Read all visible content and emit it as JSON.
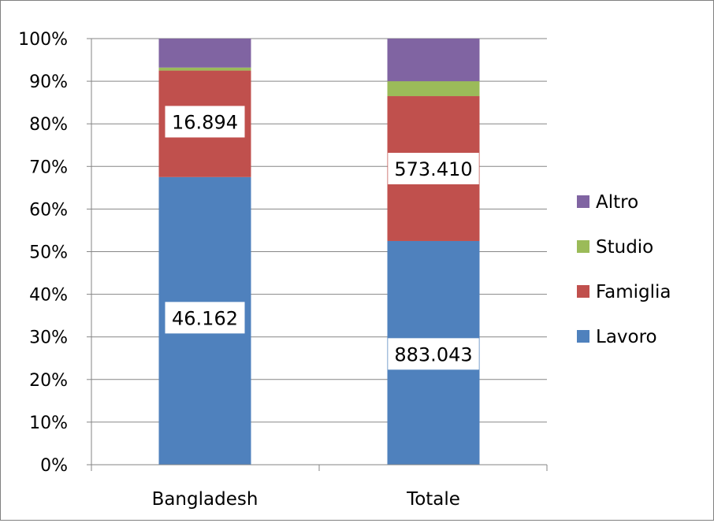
{
  "chart_data": {
    "type": "bar",
    "stacked": true,
    "normalized_percent": true,
    "categories": [
      "Bangladesh",
      "Totale"
    ],
    "series": [
      {
        "name": "Lavoro",
        "color": "#4F81BD",
        "values": [
          67.5,
          52.5
        ]
      },
      {
        "name": "Famiglia",
        "color": "#C0504D",
        "values": [
          25.0,
          34.0
        ]
      },
      {
        "name": "Studio",
        "color": "#9BBB59",
        "values": [
          0.7,
          3.5
        ]
      },
      {
        "name": "Altro",
        "color": "#8064A2",
        "values": [
          6.8,
          10.0
        ]
      }
    ],
    "data_labels": [
      {
        "category": "Bangladesh",
        "series": "Famiglia",
        "text": "16.894",
        "at_percent": 80.5
      },
      {
        "category": "Bangladesh",
        "series": "Lavoro",
        "text": "46.162",
        "at_percent": 34.5
      },
      {
        "category": "Totale",
        "series": "Famiglia",
        "text": "573.410",
        "at_percent": 69.5
      },
      {
        "category": "Totale",
        "series": "Lavoro",
        "text": "883.043",
        "at_percent": 26.0
      }
    ],
    "y_ticks": [
      "0%",
      "10%",
      "20%",
      "30%",
      "40%",
      "50%",
      "60%",
      "70%",
      "80%",
      "90%",
      "100%"
    ],
    "ylim": [
      0,
      100
    ],
    "grid": true,
    "legend_position": "right",
    "legend_order": [
      "Altro",
      "Studio",
      "Famiglia",
      "Lavoro"
    ]
  }
}
